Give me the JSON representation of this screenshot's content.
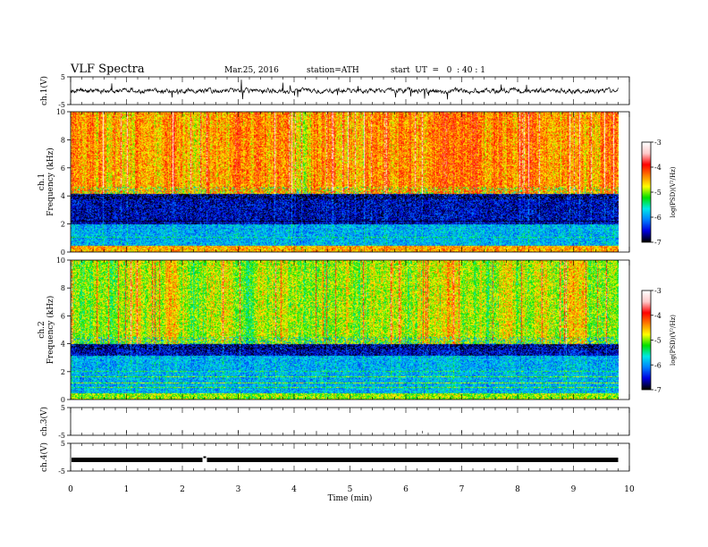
{
  "header": {
    "title": "VLF  Spectra",
    "date": "Mar.25, 2016",
    "station": "station=ATH",
    "start": "start  UT  =   0  : 40 : 1"
  },
  "chart_data": [
    {
      "type": "line",
      "name": "ch1-waveform",
      "ylabel": "ch.1(V)",
      "ylim": [
        -5,
        5
      ],
      "yticks": [
        "5",
        "-5"
      ],
      "xlim": [
        0,
        10
      ],
      "baseline": 0,
      "amplitude_typical": 0.6,
      "spikes_max": 4.5
    },
    {
      "type": "heatmap",
      "name": "ch1-spectrogram",
      "ylabel_channel": "ch.1",
      "ylabel": "Frequency  (kHz)",
      "ylim": [
        0,
        10
      ],
      "yticks": [
        "0",
        "2",
        "4",
        "6",
        "8",
        "10"
      ],
      "x_extent_min": 9.8,
      "colorbar": {
        "label": "log(PSD)(V²/Hz)",
        "range": [
          -7,
          -3
        ],
        "ticks": [
          "-3",
          "-4",
          "-5",
          "-6",
          "-7"
        ]
      },
      "bands": [
        {
          "from_khz": 0,
          "to_khz": 0.5,
          "log_psd": -4.5
        },
        {
          "from_khz": 0.5,
          "to_khz": 2.0,
          "log_psd": -5.9
        },
        {
          "from_khz": 2.0,
          "to_khz": 4.2,
          "log_psd": -6.6
        },
        {
          "from_khz": 4.2,
          "to_khz": 10,
          "log_psd": -4.4
        }
      ]
    },
    {
      "type": "heatmap",
      "name": "ch2-spectrogram",
      "ylabel_channel": "ch.2",
      "ylabel": "Frequency  (kHz)",
      "ylim": [
        0,
        10
      ],
      "yticks": [
        "0",
        "2",
        "4",
        "6",
        "8",
        "10"
      ],
      "x_extent_min": 9.8,
      "colorbar": {
        "label": "log(PSD)(V²/Hz)",
        "range": [
          -7,
          -3
        ],
        "ticks": [
          "-3",
          "-4",
          "-5",
          "-6",
          "-7"
        ]
      },
      "bands": [
        {
          "from_khz": 0,
          "to_khz": 0.5,
          "log_psd": -5.0
        },
        {
          "from_khz": 0.5,
          "to_khz": 3.2,
          "log_psd": -5.9
        },
        {
          "from_khz": 3.2,
          "to_khz": 4.0,
          "log_psd": -6.6
        },
        {
          "from_khz": 4.0,
          "to_khz": 10,
          "log_psd": -4.9
        }
      ]
    },
    {
      "type": "line",
      "name": "ch3-waveform",
      "ylabel": "ch.3(V)",
      "ylim": [
        -5,
        5
      ],
      "yticks": [
        "5",
        "-5"
      ],
      "xlim": [
        0,
        10
      ],
      "values_note_none": true
    },
    {
      "type": "line",
      "name": "ch4-waveform",
      "ylabel": "ch.4(V)",
      "ylim": [
        -5,
        5
      ],
      "yticks": [
        "5",
        "-5"
      ],
      "xlim": [
        0,
        10
      ],
      "level": 0,
      "x_extent_min": 9.8,
      "gap_at_min": 2.4
    }
  ],
  "xaxis": {
    "label": "Time  (min)",
    "ticks": [
      "0",
      "1",
      "2",
      "3",
      "4",
      "5",
      "6",
      "7",
      "8",
      "9",
      "10"
    ],
    "range": [
      0,
      10
    ]
  },
  "colors": {
    "cmap": [
      "#000000",
      "#0000e0",
      "#0080ff",
      "#00e8e8",
      "#00e000",
      "#ffff00",
      "#ff8000",
      "#ff0000",
      "#ffc8c8",
      "#ffffff"
    ]
  }
}
